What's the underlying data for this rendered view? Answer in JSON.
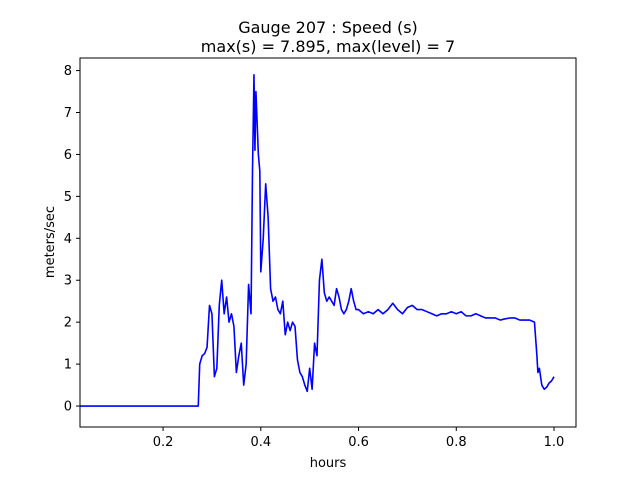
{
  "chart_data": {
    "type": "line",
    "title_line1": "Gauge 207 : Speed (s)",
    "title_line2": "max(s) =   7.895,    max(level) = 7",
    "xlabel": "hours",
    "ylabel": "meters/sec",
    "xlim": [
      0.03,
      1.045
    ],
    "ylim": [
      -0.5,
      8.3
    ],
    "grid": false,
    "xticks": [
      0.2,
      0.4,
      0.6,
      0.8,
      1.0
    ],
    "xtick_labels": [
      "0.2",
      "0.4",
      "0.6",
      "0.8",
      "1.0"
    ],
    "yticks": [
      0,
      1,
      2,
      3,
      4,
      5,
      6,
      7,
      8
    ],
    "ytick_labels": [
      "0",
      "1",
      "2",
      "3",
      "4",
      "5",
      "6",
      "7",
      "8"
    ],
    "line_color": "#0000ff",
    "series": [
      {
        "x": [
          0.03,
          0.1,
          0.2,
          0.272,
          0.275,
          0.28,
          0.285,
          0.29,
          0.295,
          0.3,
          0.305,
          0.31,
          0.315,
          0.32,
          0.325,
          0.33,
          0.335,
          0.34,
          0.345,
          0.35,
          0.355,
          0.36,
          0.365,
          0.37,
          0.375,
          0.38,
          0.383,
          0.386,
          0.388,
          0.39,
          0.392,
          0.395,
          0.398,
          0.4,
          0.405,
          0.41,
          0.415,
          0.42,
          0.425,
          0.43,
          0.435,
          0.44,
          0.445,
          0.45,
          0.455,
          0.46,
          0.465,
          0.47,
          0.475,
          0.48,
          0.485,
          0.49,
          0.495,
          0.5,
          0.505,
          0.51,
          0.515,
          0.52,
          0.525,
          0.53,
          0.535,
          0.54,
          0.545,
          0.55,
          0.555,
          0.56,
          0.565,
          0.57,
          0.575,
          0.58,
          0.585,
          0.59,
          0.595,
          0.6,
          0.61,
          0.62,
          0.63,
          0.64,
          0.65,
          0.66,
          0.67,
          0.68,
          0.69,
          0.7,
          0.71,
          0.72,
          0.73,
          0.74,
          0.75,
          0.76,
          0.77,
          0.78,
          0.79,
          0.8,
          0.81,
          0.82,
          0.83,
          0.84,
          0.85,
          0.86,
          0.87,
          0.88,
          0.89,
          0.9,
          0.91,
          0.92,
          0.93,
          0.94,
          0.95,
          0.96,
          0.965,
          0.967,
          0.97,
          0.975,
          0.98,
          0.985,
          0.99,
          0.995,
          1.0
        ],
        "y": [
          0.0,
          0.0,
          0.0,
          0.0,
          1.0,
          1.2,
          1.25,
          1.4,
          2.4,
          2.2,
          0.7,
          0.9,
          2.4,
          3.0,
          2.2,
          2.6,
          2.0,
          2.2,
          1.9,
          0.8,
          1.2,
          1.5,
          0.5,
          1.0,
          2.9,
          2.2,
          5.6,
          7.9,
          6.1,
          7.5,
          6.9,
          6.0,
          5.6,
          3.2,
          4.0,
          5.3,
          4.5,
          2.8,
          2.5,
          2.6,
          2.3,
          2.2,
          2.5,
          1.7,
          2.0,
          1.8,
          2.0,
          1.9,
          1.1,
          0.8,
          0.7,
          0.5,
          0.35,
          0.9,
          0.4,
          1.5,
          1.2,
          3.0,
          3.5,
          2.7,
          2.5,
          2.6,
          2.5,
          2.4,
          2.8,
          2.6,
          2.3,
          2.2,
          2.3,
          2.5,
          2.8,
          2.5,
          2.3,
          2.3,
          2.2,
          2.25,
          2.2,
          2.3,
          2.2,
          2.3,
          2.45,
          2.3,
          2.2,
          2.35,
          2.4,
          2.3,
          2.3,
          2.25,
          2.2,
          2.15,
          2.2,
          2.2,
          2.25,
          2.2,
          2.25,
          2.15,
          2.15,
          2.2,
          2.15,
          2.1,
          2.1,
          2.1,
          2.05,
          2.08,
          2.1,
          2.1,
          2.05,
          2.05,
          2.05,
          2.0,
          1.2,
          0.8,
          0.9,
          0.5,
          0.4,
          0.45,
          0.55,
          0.6,
          0.7
        ]
      }
    ]
  }
}
